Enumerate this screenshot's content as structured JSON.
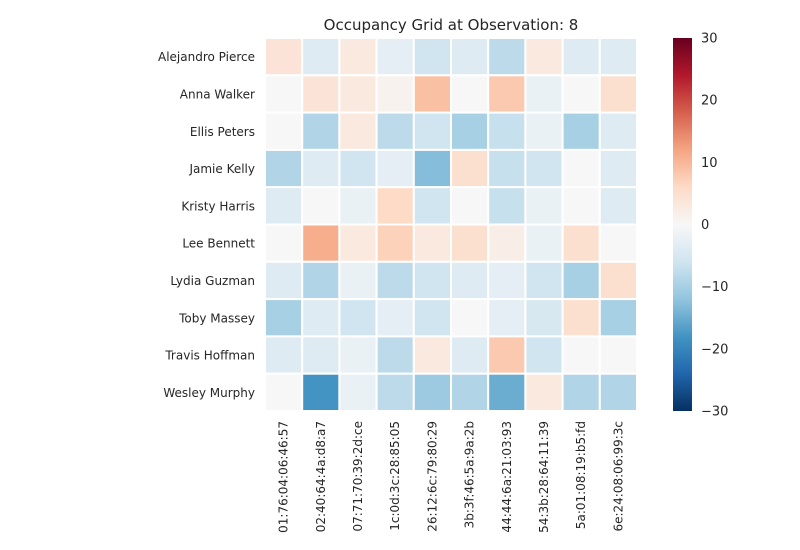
{
  "chart_data": {
    "type": "heatmap",
    "title": "Occupancy Grid at Observation: 8",
    "xlabel": "",
    "ylabel": "",
    "rows": [
      "Alejandro Pierce",
      "Anna Walker",
      "Ellis Peters",
      "Jamie Kelly",
      "Kristy Harris",
      "Lee Bennett",
      "Lydia Guzman",
      "Toby Massey",
      "Travis Hoffman",
      "Wesley Murphy"
    ],
    "columns": [
      "01:76:04:06:46:57",
      "02:40:64:4a:d8:a7",
      "07:71:70:39:2d:ce",
      "1c:0d:3c:28:85:05",
      "26:12:6c:79:80:29",
      "3b:3f:46:5a:9a:2b",
      "44:44:6a:21:03:93",
      "54:3b:28:64:11:39",
      "5a:01:08:19:b5:fd",
      "6e:24:08:06:99:3c"
    ],
    "values": [
      [
        4,
        -4,
        3,
        -3,
        -6,
        -4,
        -8,
        3,
        -4,
        -4
      ],
      [
        0,
        4,
        3,
        1,
        9,
        0,
        8,
        -2,
        0,
        5
      ],
      [
        0,
        -9,
        3,
        -8,
        -6,
        -10,
        -7,
        -2,
        -10,
        -4
      ],
      [
        -9,
        -4,
        -6,
        -3,
        -13,
        5,
        -7,
        -6,
        0,
        -4
      ],
      [
        -4,
        0,
        -2,
        6,
        -6,
        0,
        -7,
        -2,
        0,
        -4
      ],
      [
        0,
        11,
        3,
        7,
        3,
        5,
        2,
        -2,
        5,
        0
      ],
      [
        -4,
        -9,
        -2,
        -8,
        -6,
        -4,
        -3,
        -6,
        -10,
        5
      ],
      [
        -10,
        -4,
        -6,
        -3,
        -6,
        0,
        -3,
        -5,
        5,
        -10
      ],
      [
        -4,
        -4,
        -2,
        -8,
        3,
        -4,
        8,
        -6,
        0,
        0
      ],
      [
        0,
        -18,
        -2,
        -8,
        -11,
        -9,
        -15,
        3,
        -9,
        -9
      ]
    ],
    "colormap": "RdBu_r",
    "vmin": -30,
    "vmax": 30,
    "colorbar_ticks": [
      30,
      20,
      10,
      0,
      -10,
      -20,
      -30
    ],
    "grid_line_color": "#ffffff"
  }
}
